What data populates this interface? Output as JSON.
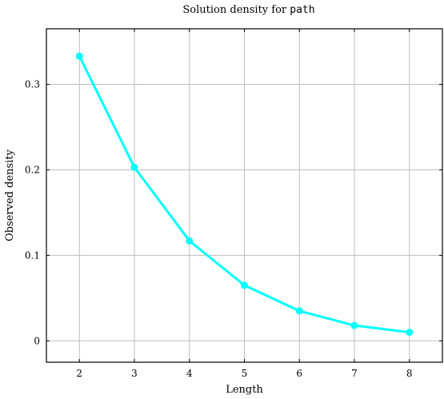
{
  "chart_data": {
    "type": "line",
    "title_prefix": "Solution density for ",
    "title_code": "path",
    "xlabel": "Length",
    "ylabel": "Observed density",
    "x": [
      2,
      3,
      4,
      5,
      6,
      7,
      8
    ],
    "xlim": [
      1.4,
      8.6
    ],
    "ylim": [
      -0.025,
      0.365
    ],
    "xticks": [
      2,
      3,
      4,
      5,
      6,
      7,
      8
    ],
    "yticks": [
      0,
      0.1,
      0.2,
      0.3
    ],
    "ytick_labels": [
      "0",
      "0.1",
      "0.2",
      "0.3"
    ],
    "grid": true,
    "series": [
      {
        "color": "#00ffff",
        "values": [
          0.333,
          0.203,
          0.117,
          0.065,
          0.035,
          0.018,
          0.01
        ]
      }
    ]
  }
}
